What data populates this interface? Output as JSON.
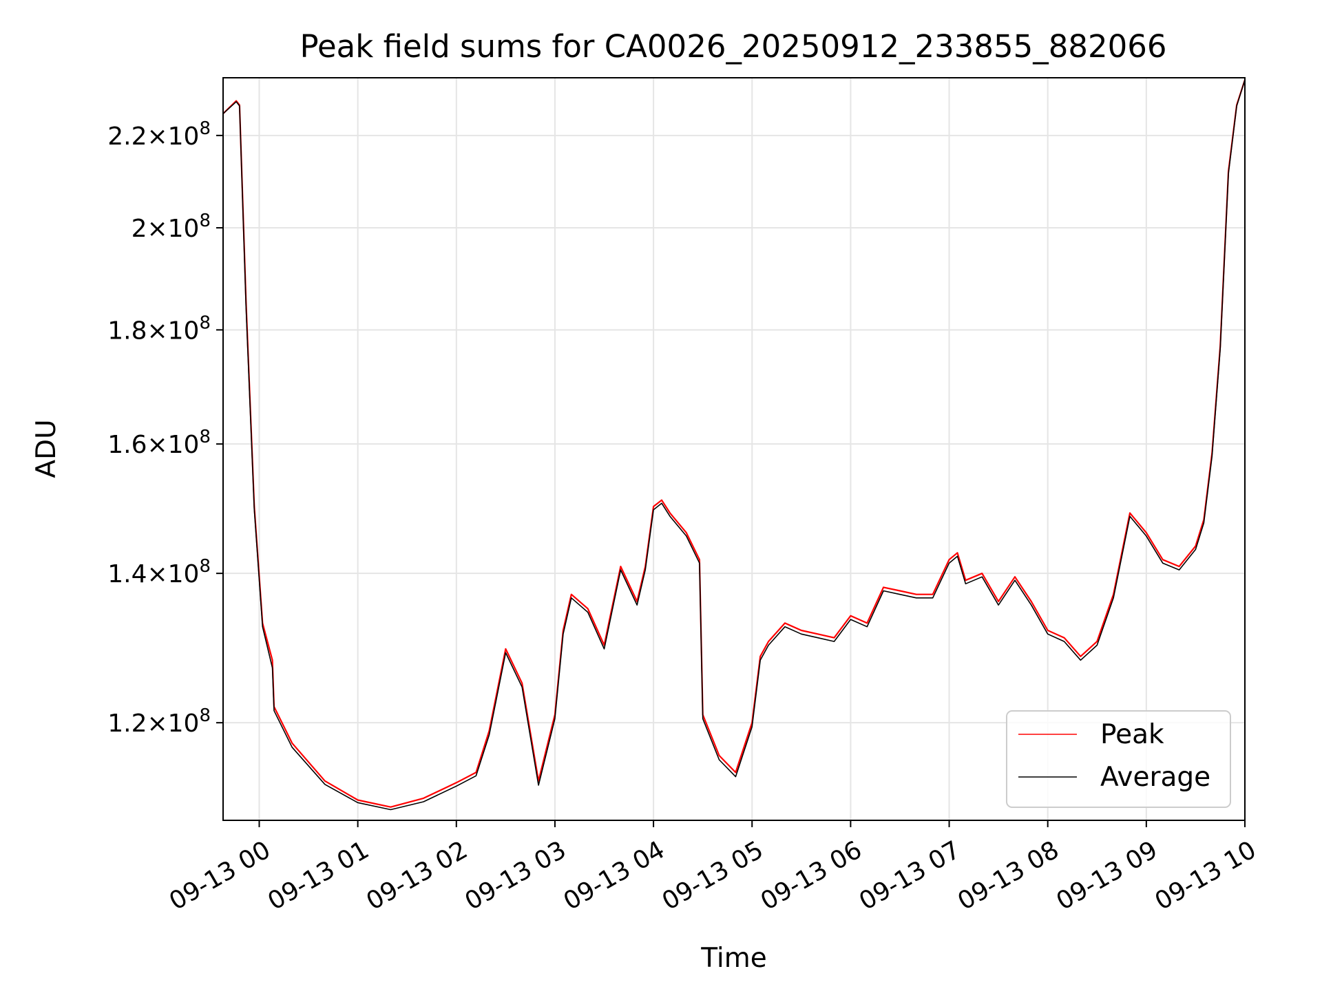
{
  "chart_data": {
    "type": "line",
    "title": "Peak field sums for CA0026_20250912_233855_882066",
    "xlabel": "Time",
    "ylabel": "ADU",
    "y_scale": "log",
    "x_ticks": [
      "09-13 00",
      "09-13 01",
      "09-13 02",
      "09-13 03",
      "09-13 04",
      "09-13 05",
      "09-13 06",
      "09-13 07",
      "09-13 08",
      "09-13 09",
      "09-13 10"
    ],
    "x_tick_times": [
      "2025-09-13T00:00",
      "2025-09-13T01:00",
      "2025-09-13T02:00",
      "2025-09-13T03:00",
      "2025-09-13T04:00",
      "2025-09-13T05:00",
      "2025-09-13T06:00",
      "2025-09-13T07:00",
      "2025-09-13T08:00",
      "2025-09-13T09:00",
      "2025-09-13T10:00"
    ],
    "y_ticks": [
      {
        "value": 120000000,
        "mantissa": "1.2",
        "exponent": "8"
      },
      {
        "value": 140000000,
        "mantissa": "1.4",
        "exponent": "8"
      },
      {
        "value": 160000000,
        "mantissa": "1.6",
        "exponent": "8"
      },
      {
        "value": 180000000,
        "mantissa": "1.8",
        "exponent": "8"
      },
      {
        "value": 200000000,
        "mantissa": "2",
        "exponent": "8"
      },
      {
        "value": 220000000,
        "mantissa": "2.2",
        "exponent": "8"
      }
    ],
    "xlim": [
      "2025-09-12T23:38",
      "2025-09-13T10:00"
    ],
    "ylim": [
      108500000,
      233500000
    ],
    "grid": true,
    "legend_position": "lower right",
    "series": [
      {
        "name": "Peak",
        "color": "#ff0000",
        "x": [
          "2025-09-12T23:38",
          "2025-09-12T23:46",
          "2025-09-12T23:48",
          "2025-09-12T23:52",
          "2025-09-12T23:57",
          "2025-09-13T00:02",
          "2025-09-13T00:08",
          "2025-09-13T00:09",
          "2025-09-13T00:20",
          "2025-09-13T00:40",
          "2025-09-13T01:00",
          "2025-09-13T01:20",
          "2025-09-13T01:40",
          "2025-09-13T02:00",
          "2025-09-13T02:12",
          "2025-09-13T02:20",
          "2025-09-13T02:30",
          "2025-09-13T02:40",
          "2025-09-13T02:50",
          "2025-09-13T03:00",
          "2025-09-13T03:05",
          "2025-09-13T03:10",
          "2025-09-13T03:20",
          "2025-09-13T03:30",
          "2025-09-13T03:40",
          "2025-09-13T03:50",
          "2025-09-13T03:55",
          "2025-09-13T04:00",
          "2025-09-13T04:05",
          "2025-09-13T04:10",
          "2025-09-13T04:20",
          "2025-09-13T04:28",
          "2025-09-13T04:30",
          "2025-09-13T04:40",
          "2025-09-13T04:50",
          "2025-09-13T05:00",
          "2025-09-13T05:05",
          "2025-09-13T05:10",
          "2025-09-13T05:20",
          "2025-09-13T05:30",
          "2025-09-13T05:40",
          "2025-09-13T05:50",
          "2025-09-13T06:00",
          "2025-09-13T06:10",
          "2025-09-13T06:20",
          "2025-09-13T06:30",
          "2025-09-13T06:40",
          "2025-09-13T06:50",
          "2025-09-13T07:00",
          "2025-09-13T07:05",
          "2025-09-13T07:10",
          "2025-09-13T07:20",
          "2025-09-13T07:30",
          "2025-09-13T07:40",
          "2025-09-13T07:50",
          "2025-09-13T08:00",
          "2025-09-13T08:10",
          "2025-09-13T08:20",
          "2025-09-13T08:30",
          "2025-09-13T08:40",
          "2025-09-13T08:50",
          "2025-09-13T09:00",
          "2025-09-13T09:10",
          "2025-09-13T09:20",
          "2025-09-13T09:30",
          "2025-09-13T09:35",
          "2025-09-13T09:40",
          "2025-09-13T09:45",
          "2025-09-13T09:50",
          "2025-09-13T09:55",
          "2025-09-13T10:00"
        ],
        "y": [
          225000000,
          228000000,
          227000000,
          185000000,
          150000000,
          133000000,
          128000000,
          122000000,
          117500000,
          113000000,
          110800000,
          110000000,
          111000000,
          112800000,
          114000000,
          119000000,
          129500000,
          125000000,
          113000000,
          121000000,
          132000000,
          137000000,
          135000000,
          130000000,
          141000000,
          136000000,
          141000000,
          150000000,
          151000000,
          149000000,
          146000000,
          142000000,
          121000000,
          116000000,
          114000000,
          120000000,
          128500000,
          130500000,
          133000000,
          132000000,
          131500000,
          131000000,
          134000000,
          133000000,
          138000000,
          137500000,
          137000000,
          137000000,
          142000000,
          143000000,
          139000000,
          140000000,
          136000000,
          139500000,
          136000000,
          132000000,
          131000000,
          128500000,
          130500000,
          137000000,
          149000000,
          146000000,
          142000000,
          141000000,
          144000000,
          148000000,
          158500000,
          177000000,
          212000000,
          227000000,
          233000000
        ]
      },
      {
        "name": "Average",
        "color": "#000000",
        "x": [
          "2025-09-12T23:38",
          "2025-09-12T23:46",
          "2025-09-12T23:48",
          "2025-09-12T23:52",
          "2025-09-12T23:57",
          "2025-09-13T00:02",
          "2025-09-13T00:08",
          "2025-09-13T00:09",
          "2025-09-13T00:20",
          "2025-09-13T00:40",
          "2025-09-13T01:00",
          "2025-09-13T01:20",
          "2025-09-13T01:40",
          "2025-09-13T02:00",
          "2025-09-13T02:12",
          "2025-09-13T02:20",
          "2025-09-13T02:30",
          "2025-09-13T02:40",
          "2025-09-13T02:50",
          "2025-09-13T03:00",
          "2025-09-13T03:05",
          "2025-09-13T03:10",
          "2025-09-13T03:20",
          "2025-09-13T03:30",
          "2025-09-13T03:40",
          "2025-09-13T03:50",
          "2025-09-13T03:55",
          "2025-09-13T04:00",
          "2025-09-13T04:05",
          "2025-09-13T04:10",
          "2025-09-13T04:20",
          "2025-09-13T04:28",
          "2025-09-13T04:30",
          "2025-09-13T04:40",
          "2025-09-13T04:50",
          "2025-09-13T05:00",
          "2025-09-13T05:05",
          "2025-09-13T05:10",
          "2025-09-13T05:20",
          "2025-09-13T05:30",
          "2025-09-13T05:40",
          "2025-09-13T05:50",
          "2025-09-13T06:00",
          "2025-09-13T06:10",
          "2025-09-13T06:20",
          "2025-09-13T06:30",
          "2025-09-13T06:40",
          "2025-09-13T06:50",
          "2025-09-13T07:00",
          "2025-09-13T07:05",
          "2025-09-13T07:10",
          "2025-09-13T07:20",
          "2025-09-13T07:30",
          "2025-09-13T07:40",
          "2025-09-13T07:50",
          "2025-09-13T08:00",
          "2025-09-13T08:10",
          "2025-09-13T08:20",
          "2025-09-13T08:30",
          "2025-09-13T08:40",
          "2025-09-13T08:50",
          "2025-09-13T09:00",
          "2025-09-13T09:10",
          "2025-09-13T09:20",
          "2025-09-13T09:30",
          "2025-09-13T09:35",
          "2025-09-13T09:40",
          "2025-09-13T09:45",
          "2025-09-13T09:50",
          "2025-09-13T09:55",
          "2025-09-13T10:00"
        ],
        "y": [
          225000000,
          227800000,
          226800000,
          184000000,
          149500000,
          132500000,
          127000000,
          121500000,
          117000000,
          112600000,
          110500000,
          109700000,
          110600000,
          112400000,
          113600000,
          118500000,
          129000000,
          124500000,
          112500000,
          120500000,
          131500000,
          136500000,
          134500000,
          129500000,
          140500000,
          135500000,
          140500000,
          149500000,
          150500000,
          148500000,
          145500000,
          141500000,
          120500000,
          115500000,
          113500000,
          119500000,
          128000000,
          130000000,
          132500000,
          131500000,
          131000000,
          130500000,
          133500000,
          132500000,
          137500000,
          137000000,
          136500000,
          136500000,
          141500000,
          142500000,
          138500000,
          139500000,
          135500000,
          139000000,
          135500000,
          131500000,
          130500000,
          128000000,
          130000000,
          136500000,
          148500000,
          145500000,
          141500000,
          140500000,
          143500000,
          147500000,
          158000000,
          176500000,
          211500000,
          226800000,
          233000000
        ]
      }
    ]
  }
}
